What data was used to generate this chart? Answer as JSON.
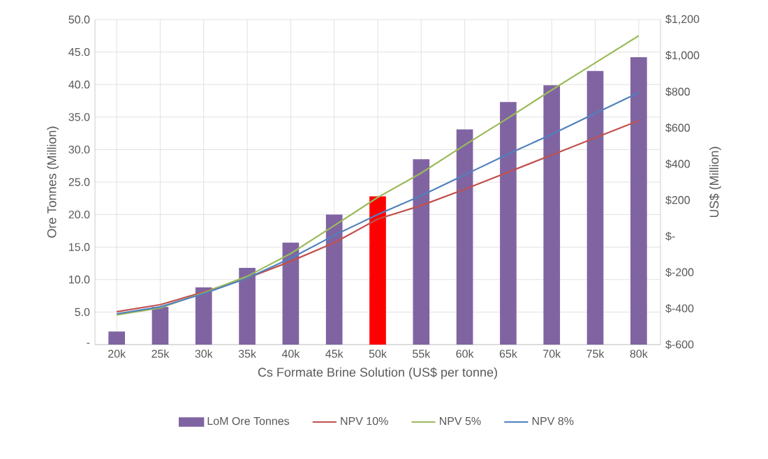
{
  "chart_data": {
    "type": "bar",
    "xlabel": "Cs Formate Brine Solution (US$ per tonne)",
    "ylabel": "Ore Tonnes (Million)",
    "y2label": "US$ (Million)",
    "categories": [
      "20k",
      "25k",
      "30k",
      "35k",
      "40k",
      "45k",
      "50k",
      "55k",
      "60k",
      "65k",
      "70k",
      "75k",
      "80k"
    ],
    "series": [
      {
        "name": "LoM Ore Tonnes",
        "color": "#8064a2",
        "colors": [
          "#8064a2",
          "#8064a2",
          "#8064a2",
          "#8064a2",
          "#8064a2",
          "#8064a2",
          "#ff0000",
          "#8064a2",
          "#8064a2",
          "#8064a2",
          "#8064a2",
          "#8064a2",
          "#8064a2"
        ],
        "values": [
          2.0,
          5.8,
          8.8,
          11.8,
          15.7,
          20.0,
          22.8,
          28.5,
          33.1,
          37.3,
          39.9,
          42.1,
          44.2
        ]
      },
      {
        "name": "NPV 10%",
        "type": "line",
        "axis": "y2",
        "color": "#c0504d",
        "values": [
          -418,
          -379,
          -309,
          -232,
          -139,
          -36,
          95,
          170,
          260,
          355,
          450,
          545,
          640
        ]
      },
      {
        "name": "NPV 5%",
        "type": "line",
        "axis": "y2",
        "color": "#9bbb59",
        "values": [
          -436,
          -397,
          -313,
          -222,
          -96,
          59,
          215,
          350,
          505,
          655,
          810,
          960,
          1110
        ]
      },
      {
        "name": "NPV 8%",
        "type": "line",
        "axis": "y2",
        "color": "#4f81bd",
        "values": [
          -430,
          -391,
          -318,
          -232,
          -122,
          5,
          120,
          225,
          340,
          455,
          565,
          680,
          795
        ]
      }
    ],
    "ylim": [
      0,
      50
    ],
    "yticks": [
      {
        "value": 0,
        "label": "-"
      },
      {
        "value": 5,
        "label": "5.0"
      },
      {
        "value": 10,
        "label": "10.0"
      },
      {
        "value": 15,
        "label": "15.0"
      },
      {
        "value": 20,
        "label": "20.0"
      },
      {
        "value": 25,
        "label": "25.0"
      },
      {
        "value": 30,
        "label": "30.0"
      },
      {
        "value": 35,
        "label": "35.0"
      },
      {
        "value": 40,
        "label": "40.0"
      },
      {
        "value": 45,
        "label": "45.0"
      },
      {
        "value": 50,
        "label": "50.0"
      }
    ],
    "y2lim": [
      -600,
      1200
    ],
    "y2ticks": [
      {
        "value": -600,
        "label": "$-600"
      },
      {
        "value": -400,
        "label": "$-400"
      },
      {
        "value": -200,
        "label": "$-200"
      },
      {
        "value": 0,
        "label": "$-"
      },
      {
        "value": 200,
        "label": "$200"
      },
      {
        "value": 400,
        "label": "$400"
      },
      {
        "value": 600,
        "label": "$600"
      },
      {
        "value": 800,
        "label": "$800"
      },
      {
        "value": 1000,
        "label": "$1,000"
      },
      {
        "value": 1200,
        "label": "$1,200"
      }
    ],
    "grid": true,
    "legend": "bottom",
    "marker": "none",
    "line_style": "solid"
  }
}
